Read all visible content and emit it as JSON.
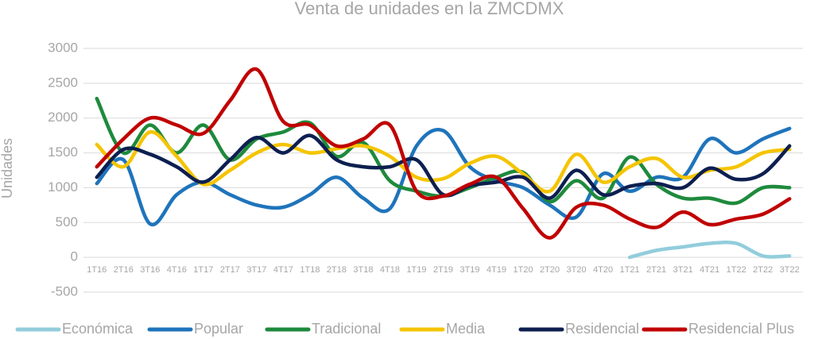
{
  "chart_data": {
    "type": "line",
    "title": "Venta de unidades en la ZMCDMX",
    "y_label": "Unidades",
    "categories": [
      "1T16",
      "2T16",
      "3T16",
      "4T16",
      "1T17",
      "2T17",
      "3T17",
      "4T17",
      "1T18",
      "2T18",
      "3T18",
      "4T18",
      "1T19",
      "2T19",
      "3T19",
      "4T19",
      "1T20",
      "2T20",
      "3T20",
      "4T20",
      "1T21",
      "2T21",
      "3T21",
      "4T21",
      "1T22",
      "2T22",
      "3T22"
    ],
    "ylim": [
      -500,
      3000
    ],
    "yticks": [
      -500,
      0,
      500,
      1000,
      1500,
      2000,
      2500,
      3000
    ],
    "grid": true,
    "legend": "bottom",
    "series": [
      {
        "name": "Económica",
        "color": "#92cddc",
        "values": [
          null,
          null,
          null,
          null,
          null,
          null,
          null,
          null,
          null,
          null,
          null,
          null,
          null,
          null,
          null,
          null,
          null,
          null,
          null,
          null,
          0,
          100,
          150,
          200,
          200,
          20,
          20
        ]
      },
      {
        "name": "Popular",
        "color": "#1f74bb",
        "values": [
          1060,
          1400,
          480,
          900,
          1080,
          900,
          750,
          720,
          900,
          1150,
          850,
          700,
          1600,
          1820,
          1300,
          1100,
          1000,
          750,
          580,
          1200,
          950,
          1150,
          1150,
          1700,
          1500,
          1700,
          1850
        ]
      },
      {
        "name": "Tradicional",
        "color": "#1e8a3c",
        "values": [
          2280,
          1500,
          1900,
          1500,
          1900,
          1400,
          1700,
          1800,
          1930,
          1450,
          1650,
          1100,
          950,
          880,
          1000,
          1150,
          1220,
          800,
          1100,
          850,
          1440,
          1050,
          850,
          850,
          780,
          1000,
          1000
        ]
      },
      {
        "name": "Media",
        "color": "#f5c400",
        "values": [
          1620,
          1300,
          1800,
          1450,
          1050,
          1250,
          1500,
          1620,
          1500,
          1560,
          1600,
          1450,
          1150,
          1130,
          1350,
          1450,
          1200,
          950,
          1480,
          1080,
          1300,
          1420,
          1150,
          1250,
          1300,
          1500,
          1550
        ]
      },
      {
        "name": "Residencial",
        "color": "#0d1f50",
        "values": [
          1150,
          1550,
          1480,
          1300,
          1080,
          1400,
          1720,
          1500,
          1750,
          1400,
          1300,
          1300,
          1400,
          900,
          1030,
          1080,
          1150,
          850,
          1250,
          900,
          1020,
          1060,
          1000,
          1280,
          1120,
          1200,
          1600
        ]
      },
      {
        "name": "Residencial Plus",
        "color": "#c00000",
        "values": [
          1300,
          1700,
          2000,
          1900,
          1780,
          2250,
          2700,
          1950,
          1900,
          1600,
          1700,
          1900,
          950,
          880,
          1050,
          1150,
          700,
          280,
          720,
          750,
          550,
          430,
          650,
          470,
          550,
          620,
          840
        ]
      }
    ]
  }
}
